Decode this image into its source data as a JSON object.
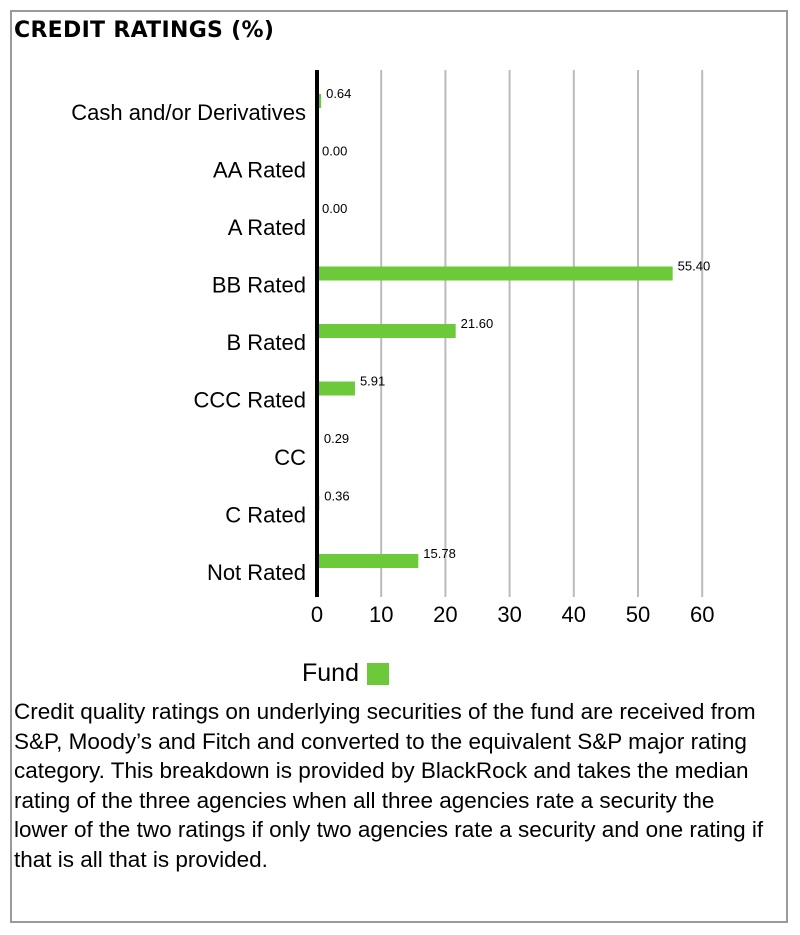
{
  "title": "CREDIT RATINGS (%)",
  "colors": {
    "bar": "#6cc93a",
    "grid": "#bbbbbb",
    "axis": "#000000"
  },
  "legend": {
    "label": "Fund"
  },
  "footnote": "Credit quality ratings on underlying securities of the fund are received from S&P, Moody’s and Fitch and converted to the equivalent S&P major rating category. This breakdown is provided by BlackRock and takes the median rating of the three agencies when all three agencies rate a security the lower of the two ratings if only two agencies rate a security and one rating if that is all that is provided.",
  "chart_data": {
    "type": "bar",
    "orientation": "horizontal",
    "title": "CREDIT RATINGS (%)",
    "categories": [
      "Cash and/or Derivatives",
      "AA Rated",
      "A Rated",
      "BB Rated",
      "B Rated",
      "CCC Rated",
      "CC",
      "C Rated",
      "Not Rated"
    ],
    "series": [
      {
        "name": "Fund",
        "values": [
          0.64,
          0.0,
          0.0,
          55.4,
          21.6,
          5.91,
          0.29,
          0.36,
          15.78
        ],
        "labels": [
          "0.64",
          "0.00",
          "0.00",
          "55.40",
          "21.60",
          "5.91",
          "0.29",
          "0.36",
          "15.78"
        ]
      }
    ],
    "xlim": [
      0,
      60
    ],
    "xticks": [
      0,
      10,
      20,
      30,
      40,
      50,
      60
    ],
    "xtick_labels": [
      "0",
      "10",
      "20",
      "30",
      "40",
      "50",
      "60"
    ],
    "grid": true,
    "legend_position": "bottom-center"
  }
}
